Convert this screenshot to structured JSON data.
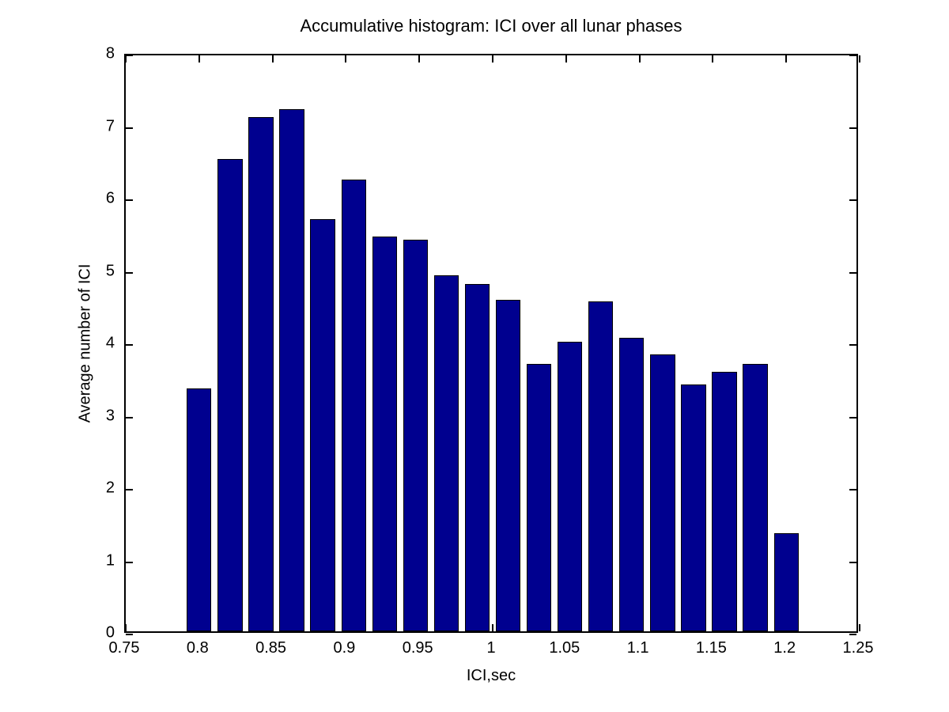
{
  "chart_data": {
    "type": "bar",
    "title": "Accumulative histogram: ICI over all lunar phases",
    "xlabel": "ICI,sec",
    "ylabel": "Average number of ICI",
    "xlim": [
      0.75,
      1.25
    ],
    "ylim": [
      0,
      8
    ],
    "grid": "off",
    "legend": "none",
    "x_tick_values": [
      0.75,
      0.8,
      0.85,
      0.9,
      0.95,
      1,
      1.05,
      1.1,
      1.15,
      1.2,
      1.25
    ],
    "x_tick_labels": [
      "0.75",
      "0.8",
      "0.85",
      "0.9",
      "0.95",
      "1",
      "1.05",
      "1.1",
      "1.15",
      "1.2",
      "1.25"
    ],
    "y_tick_values": [
      0,
      1,
      2,
      3,
      4,
      5,
      6,
      7,
      8
    ],
    "y_tick_labels": [
      "0",
      "1",
      "2",
      "3",
      "4",
      "5",
      "6",
      "7",
      "8"
    ],
    "bin_centers": [
      0.8,
      0.8211,
      0.8421,
      0.8632,
      0.8842,
      0.9053,
      0.9263,
      0.9474,
      0.9684,
      0.9895,
      1.0105,
      1.0316,
      1.0526,
      1.0737,
      1.0947,
      1.1158,
      1.1368,
      1.1579,
      1.1789,
      1.2
    ],
    "values": [
      3.35,
      6.52,
      7.1,
      7.21,
      5.69,
      6.24,
      5.45,
      5.41,
      4.92,
      4.8,
      4.58,
      3.69,
      4.0,
      4.56,
      4.06,
      3.82,
      3.41,
      3.58,
      3.69,
      1.35
    ],
    "bar_width": 0.01684,
    "bar_fill_color": "#00008F",
    "bar_edge_color": "#000000"
  }
}
